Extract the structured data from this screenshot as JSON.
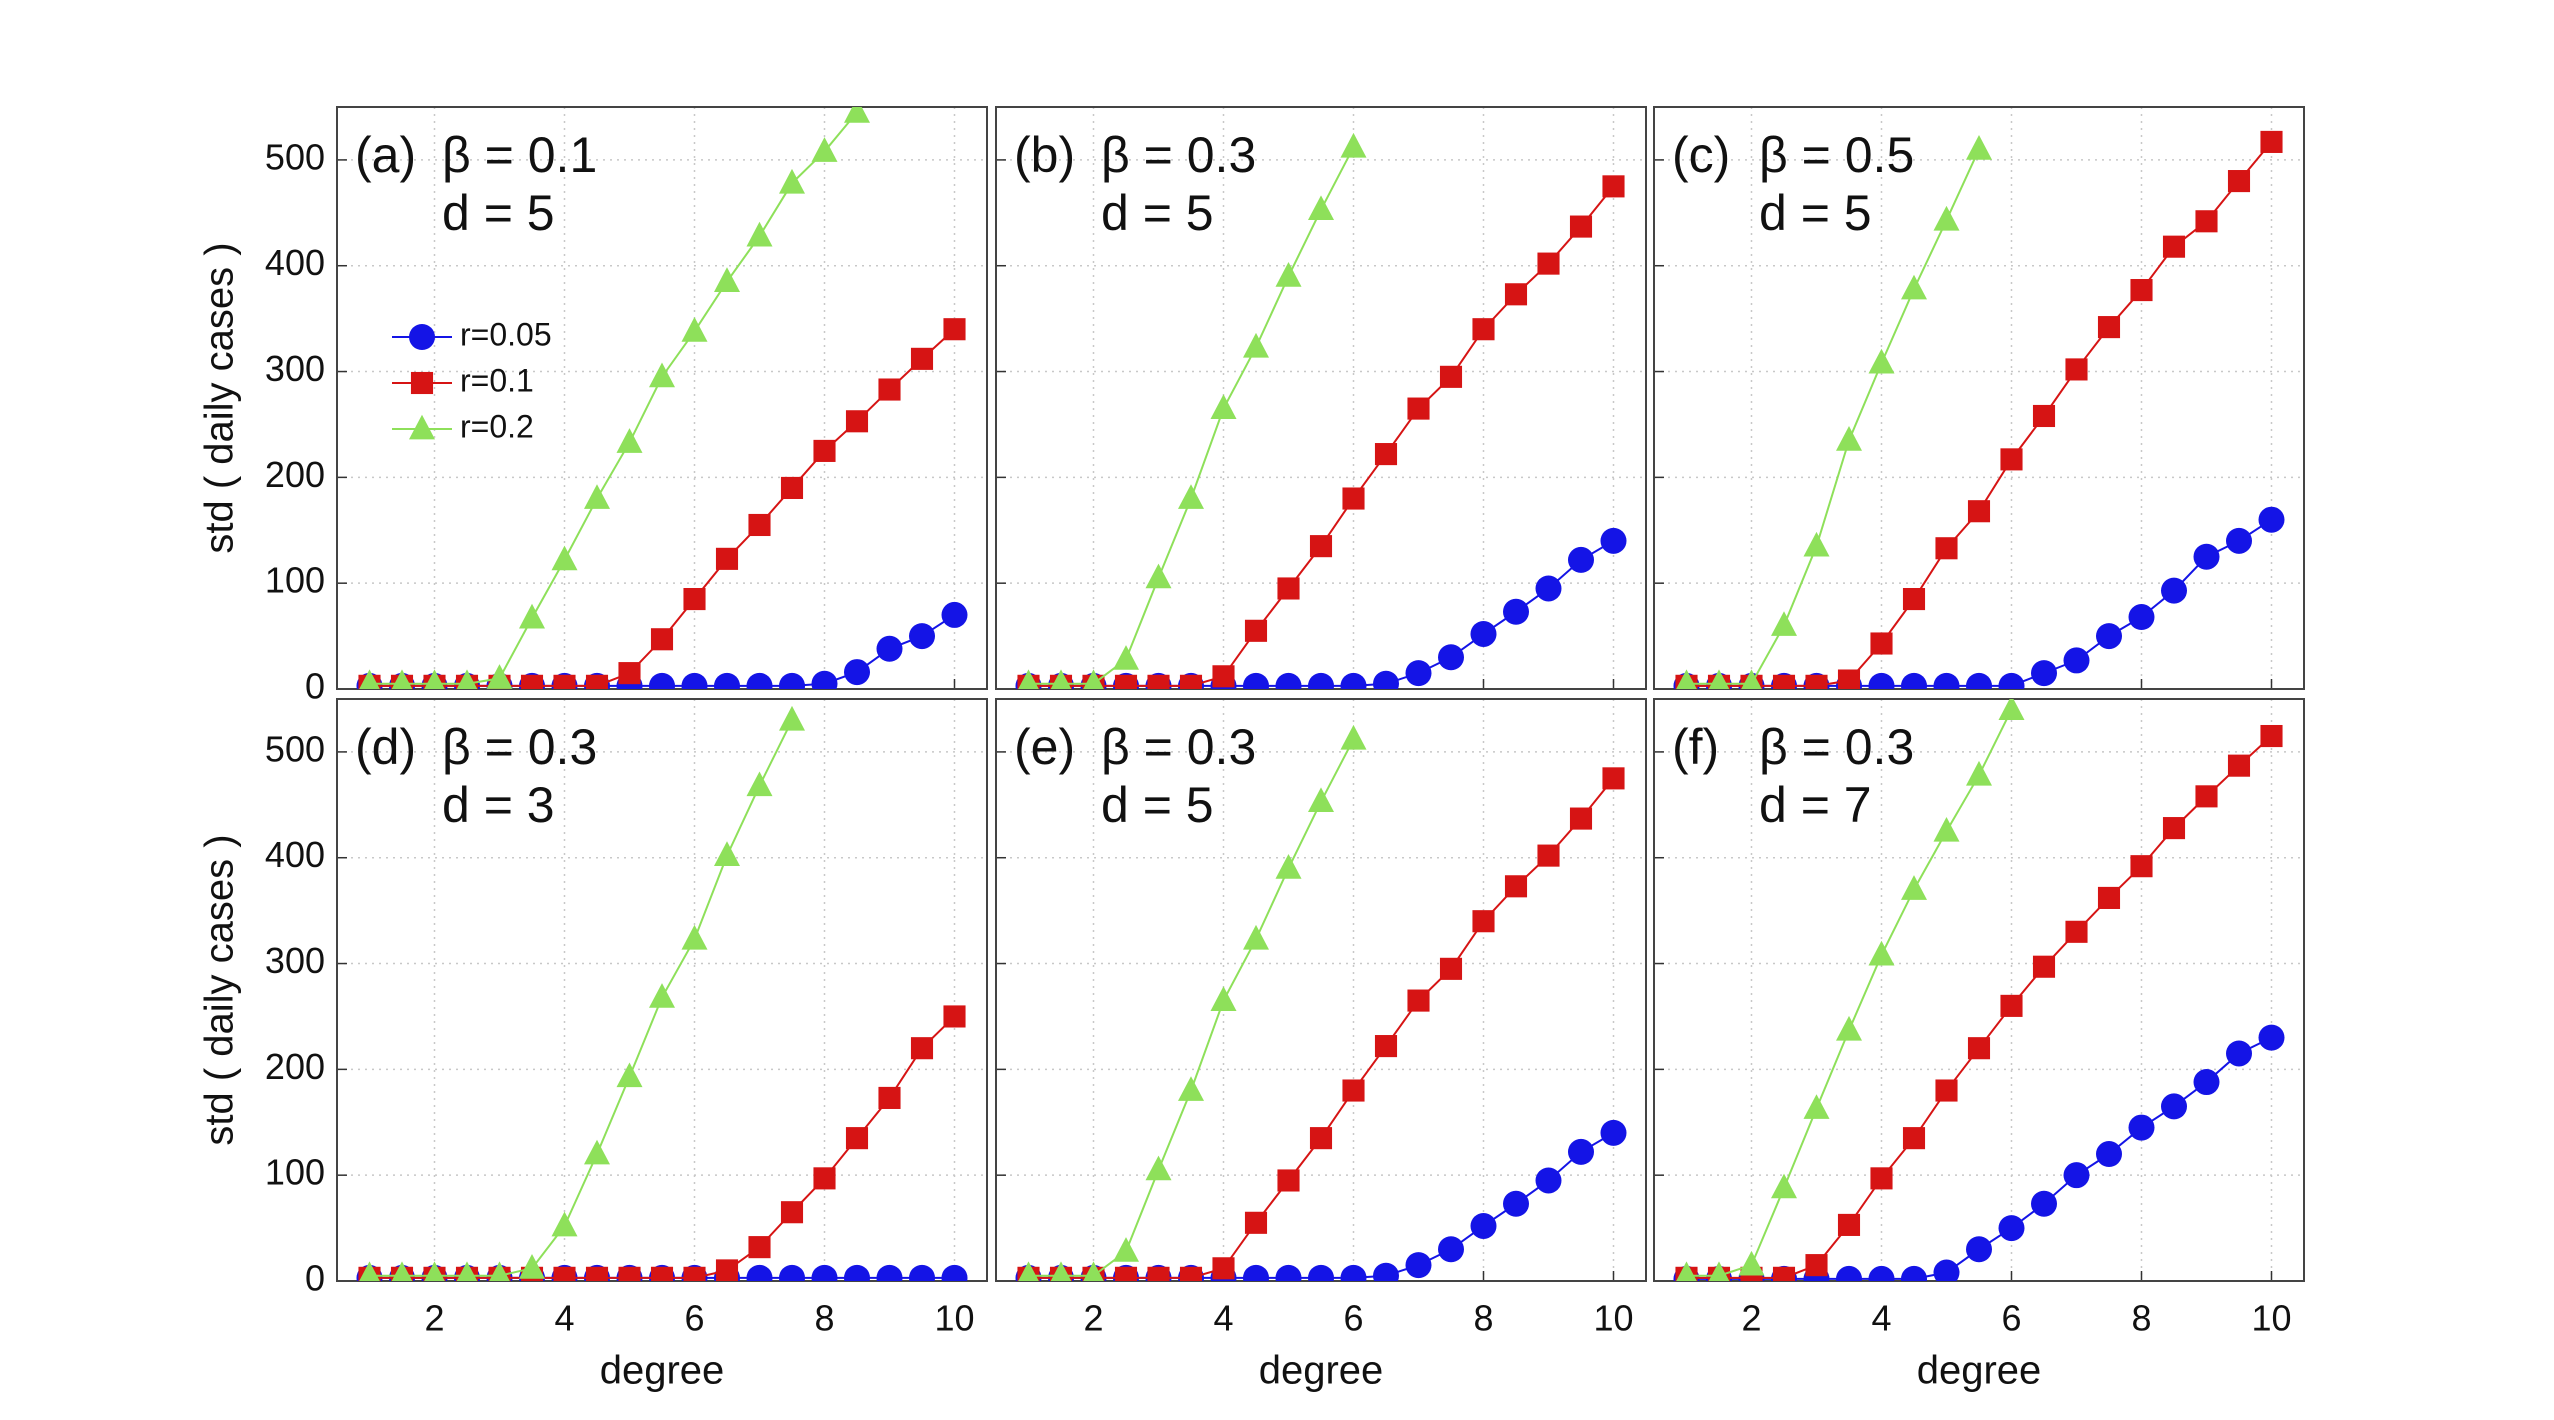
{
  "chart_data": [
    {
      "type": "line",
      "panel": "(a)",
      "annotation": [
        "β = 0.1",
        "d = 5"
      ],
      "ylabel": "std ( daily cases )",
      "x": [
        1,
        1.5,
        2,
        2.5,
        3,
        3.5,
        4,
        4.5,
        5,
        5.5,
        6,
        6.5,
        7,
        7.5,
        8,
        8.5,
        9,
        9.5,
        10
      ],
      "series": [
        {
          "name": "r=0.05",
          "color": "#1414e6",
          "marker": "circle",
          "values": [
            3,
            3,
            3,
            3,
            3,
            3,
            3,
            3,
            3,
            3,
            3,
            3,
            3,
            3,
            5,
            16,
            38,
            50,
            70
          ]
        },
        {
          "name": "r=0.1",
          "color": "#d61414",
          "marker": "square",
          "values": [
            3,
            3,
            3,
            3,
            3,
            3,
            3,
            3,
            15,
            47,
            85,
            123,
            155,
            190,
            225,
            253,
            283,
            312,
            340
          ]
        },
        {
          "name": "r=0.2",
          "color": "#8ee05a",
          "marker": "triangle",
          "values": [
            5,
            5,
            5,
            5,
            10,
            67,
            122,
            180,
            233,
            295,
            338,
            385,
            428,
            478,
            508,
            545,
            null,
            null,
            null
          ]
        }
      ],
      "xlim": [
        0.5,
        10.5
      ],
      "ylim": [
        0,
        550
      ],
      "xticks": [
        2,
        4,
        6,
        8,
        10
      ],
      "yticks": [
        0,
        100,
        200,
        300,
        400,
        500
      ],
      "tick_labels": {
        "x": false,
        "y": true
      },
      "grid": true,
      "legend": "upper left"
    },
    {
      "type": "line",
      "panel": "(b)",
      "annotation": [
        "β = 0.3",
        "d = 5"
      ],
      "x": [
        1,
        1.5,
        2,
        2.5,
        3,
        3.5,
        4,
        4.5,
        5,
        5.5,
        6,
        6.5,
        7,
        7.5,
        8,
        8.5,
        9,
        9.5,
        10
      ],
      "series": [
        {
          "name": "r=0.05",
          "color": "#1414e6",
          "marker": "circle",
          "values": [
            3,
            3,
            3,
            3,
            3,
            3,
            3,
            3,
            3,
            3,
            3,
            5,
            15,
            30,
            52,
            73,
            95,
            122,
            140
          ]
        },
        {
          "name": "r=0.1",
          "color": "#d61414",
          "marker": "square",
          "values": [
            3,
            3,
            3,
            3,
            3,
            3,
            12,
            55,
            95,
            135,
            180,
            222,
            265,
            295,
            340,
            373,
            402,
            437,
            475
          ]
        },
        {
          "name": "r=0.2",
          "color": "#8ee05a",
          "marker": "triangle",
          "values": [
            5,
            5,
            5,
            28,
            105,
            180,
            265,
            323,
            390,
            453,
            512,
            null,
            null,
            null,
            null,
            null,
            null,
            null,
            null
          ]
        }
      ],
      "xlim": [
        0.5,
        10.5
      ],
      "ylim": [
        0,
        550
      ],
      "xticks": [
        2,
        4,
        6,
        8,
        10
      ],
      "yticks": [
        0,
        100,
        200,
        300,
        400,
        500
      ],
      "tick_labels": {
        "x": false,
        "y": false
      },
      "grid": true
    },
    {
      "type": "line",
      "panel": "(c)",
      "annotation": [
        "β = 0.5",
        "d = 5"
      ],
      "x": [
        1,
        1.5,
        2,
        2.5,
        3,
        3.5,
        4,
        4.5,
        5,
        5.5,
        6,
        6.5,
        7,
        7.5,
        8,
        8.5,
        9,
        9.5,
        10
      ],
      "series": [
        {
          "name": "r=0.05",
          "color": "#1414e6",
          "marker": "circle",
          "values": [
            3,
            3,
            3,
            3,
            3,
            3,
            3,
            3,
            3,
            3,
            3,
            15,
            27,
            50,
            68,
            93,
            125,
            140,
            160
          ]
        },
        {
          "name": "r=0.1",
          "color": "#d61414",
          "marker": "square",
          "values": [
            3,
            3,
            3,
            3,
            3,
            8,
            43,
            85,
            133,
            168,
            217,
            258,
            302,
            342,
            377,
            418,
            442,
            480,
            517
          ]
        },
        {
          "name": "r=0.2",
          "color": "#8ee05a",
          "marker": "triangle",
          "values": [
            5,
            5,
            5,
            60,
            135,
            235,
            308,
            378,
            443,
            510,
            null,
            null,
            null,
            null,
            null,
            null,
            null,
            null,
            null
          ]
        }
      ],
      "xlim": [
        0.5,
        10.5
      ],
      "ylim": [
        0,
        550
      ],
      "xticks": [
        2,
        4,
        6,
        8,
        10
      ],
      "yticks": [
        0,
        100,
        200,
        300,
        400,
        500
      ],
      "tick_labels": {
        "x": false,
        "y": false
      },
      "grid": true
    },
    {
      "type": "line",
      "panel": "(d)",
      "annotation": [
        "β = 0.3",
        "d = 3"
      ],
      "xlabel": "degree",
      "ylabel": "std ( daily cases )",
      "x": [
        1,
        1.5,
        2,
        2.5,
        3,
        3.5,
        4,
        4.5,
        5,
        5.5,
        6,
        6.5,
        7,
        7.5,
        8,
        8.5,
        9,
        9.5,
        10
      ],
      "series": [
        {
          "name": "r=0.05",
          "color": "#1414e6",
          "marker": "circle",
          "values": [
            3,
            3,
            3,
            3,
            3,
            3,
            3,
            3,
            3,
            3,
            3,
            3,
            3,
            3,
            3,
            3,
            3,
            3,
            3
          ]
        },
        {
          "name": "r=0.1",
          "color": "#d61414",
          "marker": "square",
          "values": [
            3,
            3,
            3,
            3,
            3,
            3,
            3,
            3,
            3,
            3,
            3,
            10,
            32,
            65,
            97,
            135,
            173,
            220,
            250
          ]
        },
        {
          "name": "r=0.2",
          "color": "#8ee05a",
          "marker": "triangle",
          "values": [
            5,
            5,
            5,
            5,
            5,
            12,
            52,
            120,
            193,
            268,
            323,
            402,
            468,
            530,
            null,
            null,
            null,
            null,
            null
          ]
        }
      ],
      "xlim": [
        0.5,
        10.5
      ],
      "ylim": [
        0,
        550
      ],
      "xticks": [
        2,
        4,
        6,
        8,
        10
      ],
      "yticks": [
        0,
        100,
        200,
        300,
        400,
        500
      ],
      "tick_labels": {
        "x": true,
        "y": true
      },
      "grid": true
    },
    {
      "type": "line",
      "panel": "(e)",
      "annotation": [
        "β = 0.3",
        "d = 5"
      ],
      "xlabel": "degree",
      "x": [
        1,
        1.5,
        2,
        2.5,
        3,
        3.5,
        4,
        4.5,
        5,
        5.5,
        6,
        6.5,
        7,
        7.5,
        8,
        8.5,
        9,
        9.5,
        10
      ],
      "series": [
        {
          "name": "r=0.05",
          "color": "#1414e6",
          "marker": "circle",
          "values": [
            3,
            3,
            3,
            3,
            3,
            3,
            3,
            3,
            3,
            3,
            3,
            5,
            15,
            30,
            52,
            73,
            95,
            122,
            140
          ]
        },
        {
          "name": "r=0.1",
          "color": "#d61414",
          "marker": "square",
          "values": [
            3,
            3,
            3,
            3,
            3,
            3,
            12,
            55,
            95,
            135,
            180,
            222,
            265,
            295,
            340,
            373,
            402,
            437,
            475
          ]
        },
        {
          "name": "r=0.2",
          "color": "#8ee05a",
          "marker": "triangle",
          "values": [
            5,
            5,
            5,
            28,
            105,
            180,
            265,
            323,
            390,
            453,
            512,
            null,
            null,
            null,
            null,
            null,
            null,
            null,
            null
          ]
        }
      ],
      "xlim": [
        0.5,
        10.5
      ],
      "ylim": [
        0,
        550
      ],
      "xticks": [
        2,
        4,
        6,
        8,
        10
      ],
      "yticks": [
        0,
        100,
        200,
        300,
        400,
        500
      ],
      "tick_labels": {
        "x": true,
        "y": false
      },
      "grid": true
    },
    {
      "type": "line",
      "panel": "(f)",
      "annotation": [
        "β = 0.3",
        "d = 7"
      ],
      "xlabel": "degree",
      "x": [
        1,
        1.5,
        2,
        2.5,
        3,
        3.5,
        4,
        4.5,
        5,
        5.5,
        6,
        6.5,
        7,
        7.5,
        8,
        8.5,
        9,
        9.5,
        10
      ],
      "series": [
        {
          "name": "r=0.05",
          "color": "#1414e6",
          "marker": "circle",
          "values": [
            2,
            2,
            2,
            2,
            2,
            2,
            2,
            2,
            8,
            30,
            50,
            73,
            100,
            120,
            145,
            165,
            188,
            215,
            230
          ]
        },
        {
          "name": "r=0.1",
          "color": "#d61414",
          "marker": "square",
          "values": [
            3,
            3,
            3,
            3,
            15,
            53,
            97,
            135,
            180,
            220,
            260,
            297,
            330,
            362,
            392,
            428,
            458,
            487,
            515
          ]
        },
        {
          "name": "r=0.2",
          "color": "#8ee05a",
          "marker": "triangle",
          "values": [
            5,
            5,
            15,
            88,
            163,
            237,
            308,
            370,
            425,
            478,
            540,
            null,
            null,
            null,
            null,
            null,
            null,
            null,
            null
          ]
        }
      ],
      "xlim": [
        0.5,
        10.5
      ],
      "ylim": [
        0,
        550
      ],
      "xticks": [
        2,
        4,
        6,
        8,
        10
      ],
      "yticks": [
        0,
        100,
        200,
        300,
        400,
        500
      ],
      "tick_labels": {
        "x": true,
        "y": false
      },
      "grid": true
    }
  ]
}
